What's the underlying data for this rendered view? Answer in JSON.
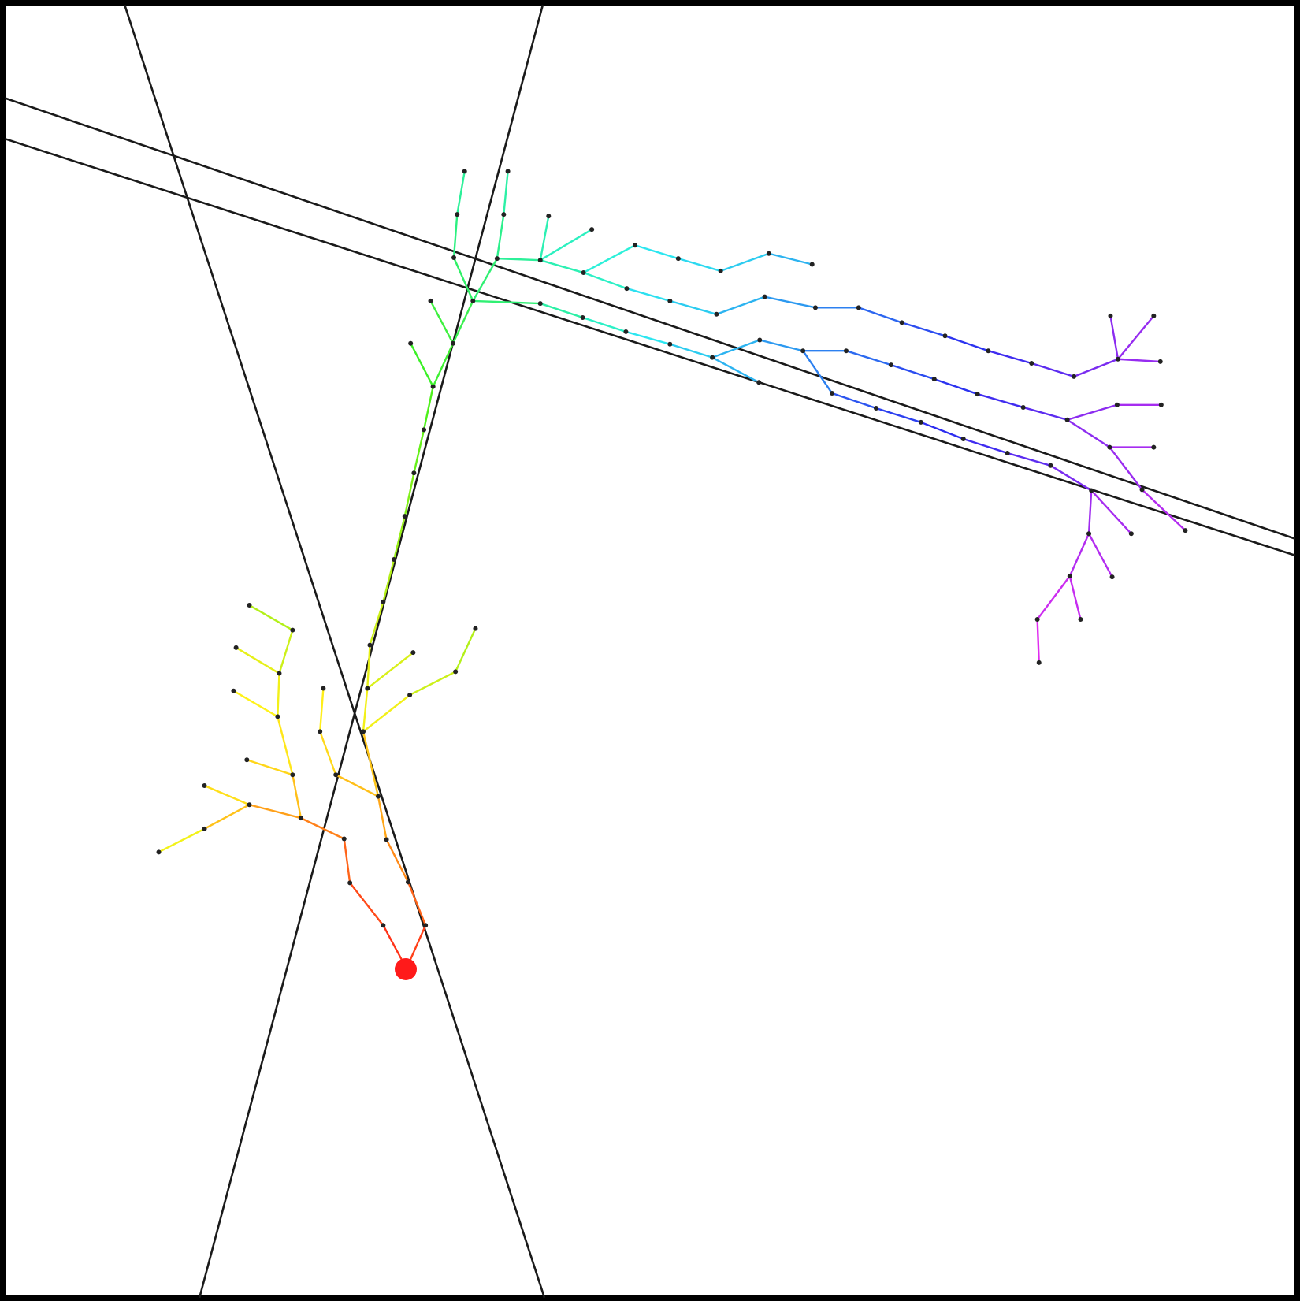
{
  "diagram": {
    "type": "branching-tree-with-lines",
    "colors": {
      "frame": "#000000",
      "lines": "#1a1a1a",
      "node": "#222222",
      "root": "#ff1a1a",
      "background": "#ffffff"
    },
    "color_gradient": "red-orange-yellow-green-cyan-blue-violet-magenta",
    "node_count": 128,
    "root_marker": "red-dot"
  }
}
